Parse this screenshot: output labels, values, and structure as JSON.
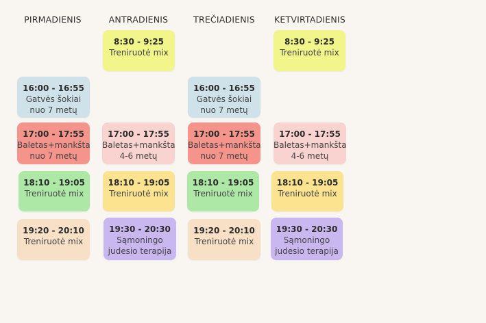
{
  "days": [
    "PIRMADIENIS",
    "ANTRADIENIS",
    "TREČIADIENIS",
    "KETVIRTADIENIS"
  ],
  "cards": [
    {
      "time": "8:30 - 9:25",
      "name": "Treniruotė mix"
    },
    {
      "time": "8:30 - 9:25",
      "name": "Treniruotė mix"
    },
    {
      "time": "16:00 - 16:55",
      "name": "Gatvės šokiai\nnuo 7 metų"
    },
    {
      "time": "16:00 - 16:55",
      "name": "Gatvės šokiai\nnuo 7 metų"
    },
    {
      "time": "17:00 - 17:55",
      "name": "Baletas+mankšta\nnuo 7 metų"
    },
    {
      "time": "17:00 - 17:55",
      "name": "Baletas+mankšta\n4-6 metų"
    },
    {
      "time": "17:00 - 17:55",
      "name": "Baletas+mankšta\nnuo 7 metų"
    },
    {
      "time": "17:00 - 17:55",
      "name": "Baletas+mankšta\n4-6 metų"
    },
    {
      "time": "18:10 - 19:05",
      "name": "Treniruotė mix"
    },
    {
      "time": "18:10 - 19:05",
      "name": "Treniruotė mix"
    },
    {
      "time": "18:10 - 19:05",
      "name": "Treniruotė mix"
    },
    {
      "time": "18:10 - 19:05",
      "name": "Treniruotė mix"
    },
    {
      "time": "19:20 - 20:10",
      "name": "Treniruotė mix"
    },
    {
      "time": "19:30 - 20:30",
      "name": "Sąmoningo\njudesio terapija"
    },
    {
      "time": "19:20 - 20:10",
      "name": "Treniruotė mix"
    },
    {
      "time": "19:30 - 20:30",
      "name": "Sąmoningo\njudesio terapija"
    }
  ]
}
